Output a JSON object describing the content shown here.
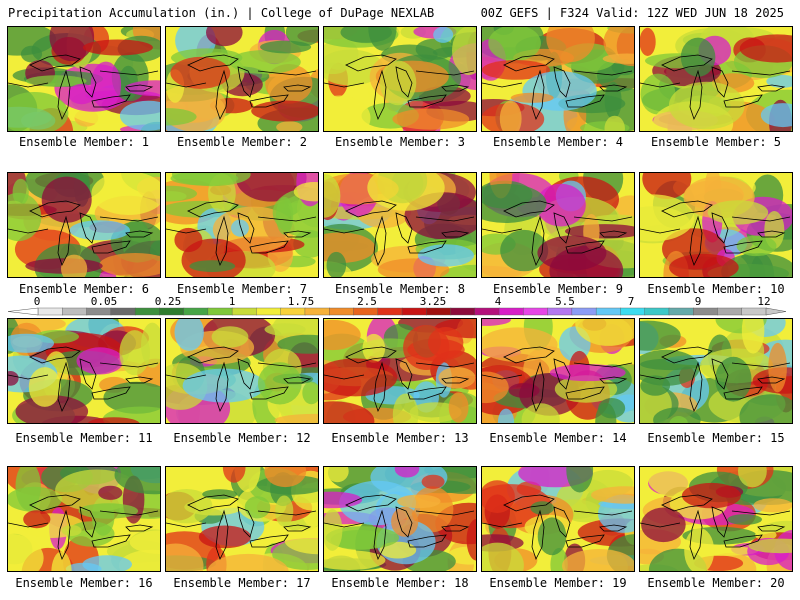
{
  "header": {
    "left": "Precipitation Accumulation (in.) | College of DuPage NEXLAB",
    "right": "00Z GEFS | F324 Valid: 12Z WED JUN 18 2025"
  },
  "members": [
    {
      "label": "Ensemble Member: 1"
    },
    {
      "label": "Ensemble Member: 2"
    },
    {
      "label": "Ensemble Member: 3"
    },
    {
      "label": "Ensemble Member: 4"
    },
    {
      "label": "Ensemble Member: 5"
    },
    {
      "label": "Ensemble Member: 6"
    },
    {
      "label": "Ensemble Member: 7"
    },
    {
      "label": "Ensemble Member: 8"
    },
    {
      "label": "Ensemble Member: 9"
    },
    {
      "label": "Ensemble Member: 10"
    },
    {
      "label": "Ensemble Member: 11"
    },
    {
      "label": "Ensemble Member: 12"
    },
    {
      "label": "Ensemble Member: 13"
    },
    {
      "label": "Ensemble Member: 14"
    },
    {
      "label": "Ensemble Member: 15"
    },
    {
      "label": "Ensemble Member: 16"
    },
    {
      "label": "Ensemble Member: 17"
    },
    {
      "label": "Ensemble Member: 18"
    },
    {
      "label": "Ensemble Member: 19"
    },
    {
      "label": "Ensemble Member: 20"
    }
  ],
  "colorbar": {
    "tick_labels": [
      "0",
      "0.05",
      "0.25",
      "1",
      "1.75",
      "2.5",
      "3.25",
      "4",
      "5.5",
      "7",
      "9",
      "12"
    ],
    "colors": [
      "#e8e8e8",
      "#bdbdbd",
      "#8c8c8c",
      "#6a6a6a",
      "#3e8f3e",
      "#2f7d2f",
      "#46a546",
      "#7fc83a",
      "#c8dc3a",
      "#f2ee3a",
      "#f8d23a",
      "#f6b23a",
      "#f08c2a",
      "#e8641e",
      "#e0321a",
      "#c81414",
      "#a01010",
      "#8c0a3c",
      "#b4107c",
      "#d81ec8",
      "#e646e6",
      "#b478f0",
      "#8c9cf5",
      "#64c8f5",
      "#3cdcf0",
      "#3cc8c8",
      "#64aaaa",
      "#8c8c8c",
      "#aaaaaa",
      "#c8c8c8"
    ]
  }
}
